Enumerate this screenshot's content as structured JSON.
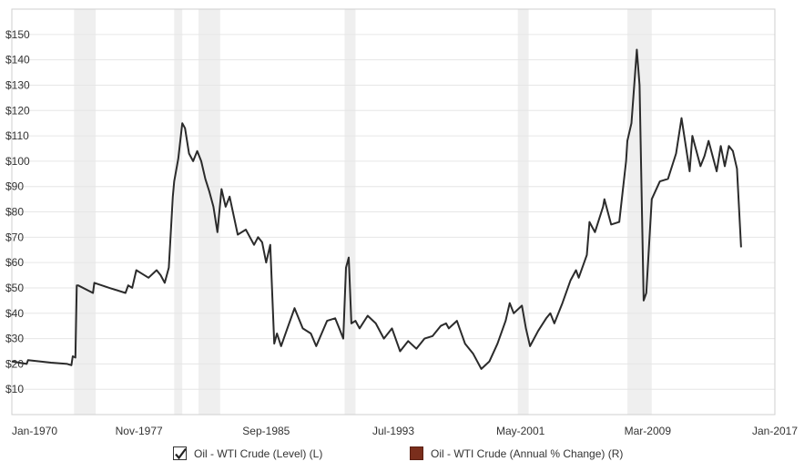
{
  "colors": {
    "line": "#2b2b2b",
    "recession": "#efefef",
    "grid": "#e6e6e6",
    "frame": "#cfcfcf",
    "series2": "#7a2e1c"
  },
  "legend": {
    "items": [
      {
        "label": "Oil - WTI Crude (Level) (L)",
        "checked": true,
        "icon": "checkmark-icon"
      },
      {
        "label": "Oil - WTI Crude (Annual % Change) (R)",
        "checked": false,
        "icon": "color-swatch-icon"
      }
    ]
  },
  "chart_data": {
    "type": "line",
    "title": "",
    "xlabel": "",
    "ylabel": "",
    "x_range": [
      "1970-01",
      "2017-01"
    ],
    "ylim": [
      0,
      160
    ],
    "yticks": [
      10,
      20,
      30,
      40,
      50,
      60,
      70,
      80,
      90,
      100,
      110,
      120,
      130,
      140,
      150
    ],
    "ytick_labels": [
      "$10",
      "$20",
      "$30",
      "$40",
      "$50",
      "$60",
      "$70",
      "$80",
      "$90",
      "$100",
      "$110",
      "$120",
      "$130",
      "$140",
      "$150"
    ],
    "xticks": [
      "1970-01",
      "1977-11",
      "1985-09",
      "1993-07",
      "2001-05",
      "2009-03",
      "2017-01"
    ],
    "xtick_labels": [
      "Jan-1970",
      "Nov-1977",
      "Sep-1985",
      "Jul-1993",
      "May-2001",
      "Mar-2009",
      "Jan-2017"
    ],
    "grid": true,
    "recessions": [
      [
        "1973-11",
        "1975-03"
      ],
      [
        "1980-01",
        "1980-07"
      ],
      [
        "1981-07",
        "1982-11"
      ],
      [
        "1990-07",
        "1991-03"
      ],
      [
        "2001-03",
        "2001-11"
      ],
      [
        "2007-12",
        "2009-06"
      ]
    ],
    "series": [
      {
        "name": "Oil - WTI Crude (Level) (L)",
        "x": [
          "1970-01",
          "1970-12",
          "1971-01",
          "1972-06",
          "1973-06",
          "1973-09",
          "1973-10",
          "1973-12",
          "1974-01",
          "1974-02",
          "1975-01",
          "1975-02",
          "1976-01",
          "1977-01",
          "1977-03",
          "1977-06",
          "1977-09",
          "1977-12",
          "1978-06",
          "1978-12",
          "1979-03",
          "1979-06",
          "1979-09",
          "1979-12",
          "1980-01",
          "1980-04",
          "1980-07",
          "1980-09",
          "1980-12",
          "1981-03",
          "1981-06",
          "1981-09",
          "1981-12",
          "1982-03",
          "1982-06",
          "1982-09",
          "1982-12",
          "1983-03",
          "1983-06",
          "1983-12",
          "1984-06",
          "1984-12",
          "1985-03",
          "1985-06",
          "1985-09",
          "1985-12",
          "1986-03",
          "1986-05",
          "1986-08",
          "1986-12",
          "1987-06",
          "1987-12",
          "1988-06",
          "1988-10",
          "1989-06",
          "1989-12",
          "1990-03",
          "1990-06",
          "1990-08",
          "1990-10",
          "1990-12",
          "1991-03",
          "1991-06",
          "1991-12",
          "1992-06",
          "1992-12",
          "1993-06",
          "1993-12",
          "1994-06",
          "1994-12",
          "1995-06",
          "1995-12",
          "1996-06",
          "1996-10",
          "1996-12",
          "1997-06",
          "1997-12",
          "1998-06",
          "1998-12",
          "1999-06",
          "1999-12",
          "2000-06",
          "2000-09",
          "2000-12",
          "2001-06",
          "2001-09",
          "2001-12",
          "2002-06",
          "2002-12",
          "2003-03",
          "2003-06",
          "2003-12",
          "2004-06",
          "2004-10",
          "2004-12",
          "2005-06",
          "2005-08",
          "2005-12",
          "2006-06",
          "2006-07",
          "2006-12",
          "2007-06",
          "2007-11",
          "2007-12",
          "2008-03",
          "2008-07",
          "2008-09",
          "2008-12",
          "2009-02",
          "2009-06",
          "2009-12",
          "2010-06",
          "2010-12",
          "2011-04",
          "2011-10",
          "2011-12",
          "2012-06",
          "2012-09",
          "2012-12",
          "2013-06",
          "2013-09",
          "2013-12",
          "2014-03",
          "2014-06",
          "2014-09",
          "2014-12"
        ],
        "values": [
          21,
          20,
          21.5,
          20.5,
          20,
          19.5,
          23,
          22.5,
          51,
          51,
          48,
          52,
          50,
          48,
          51,
          50,
          57,
          56,
          54,
          57,
          55,
          52,
          58,
          86,
          92,
          101,
          115,
          113,
          103,
          100,
          104,
          100,
          93,
          88,
          82,
          72,
          89,
          82,
          86,
          71,
          73,
          67,
          70,
          68,
          60,
          67,
          28,
          32,
          27,
          33,
          42,
          34,
          32,
          27,
          37,
          38,
          34,
          30,
          58,
          62,
          36,
          37,
          34,
          39,
          36,
          30,
          34,
          25,
          29,
          26,
          30,
          31,
          35,
          36,
          34,
          37,
          28,
          24,
          18,
          21,
          28,
          37,
          44,
          40,
          43,
          34,
          27,
          33,
          38,
          40,
          36,
          44,
          53,
          57,
          54,
          63,
          76,
          72,
          82,
          85,
          75,
          76,
          100,
          108,
          115,
          144,
          130,
          45,
          48,
          85,
          92,
          93,
          103,
          117,
          96,
          110,
          98,
          102,
          108,
          96,
          106,
          98,
          106,
          104,
          97,
          66
        ]
      }
    ]
  }
}
